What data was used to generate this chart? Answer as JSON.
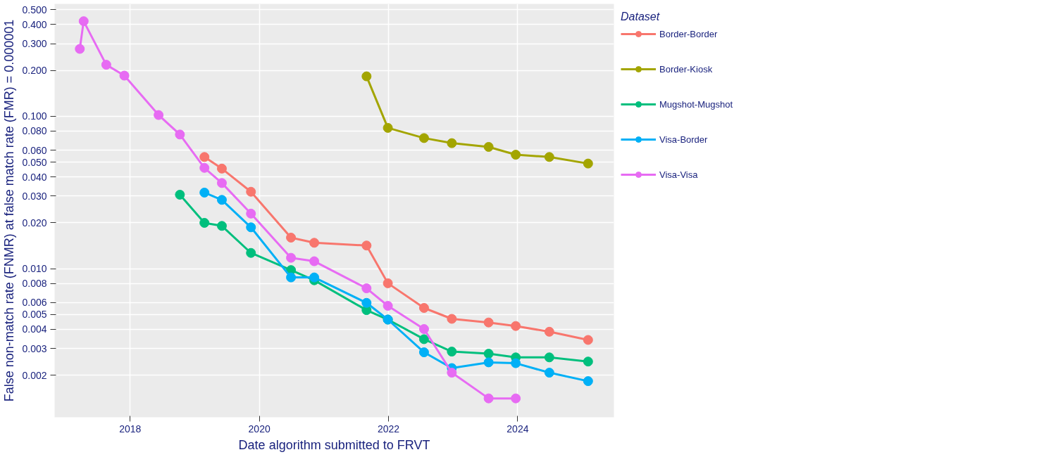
{
  "chart_data": {
    "type": "line",
    "xlabel": "Date algorithm submitted to FRVT",
    "ylabel": "False non-match rate (FNMR) at false match rate (FMR) = 0.000001",
    "legend_title": "Dataset",
    "legend": "right",
    "grid": true,
    "marker": "circle",
    "line_style": "solid",
    "log": "y",
    "xlim": [
      2016.83,
      2025.49
    ],
    "xticks": [
      2018,
      2020,
      2022,
      2024
    ],
    "ylim": [
      0.00106,
      0.547
    ],
    "yticks": [
      {
        "value": 0.002,
        "label": "0.002"
      },
      {
        "value": 0.003,
        "label": "0.003"
      },
      {
        "value": 0.004,
        "label": "0.004"
      },
      {
        "value": 0.005,
        "label": "0.005"
      },
      {
        "value": 0.006,
        "label": "0.006"
      },
      {
        "value": 0.008,
        "label": "0.008"
      },
      {
        "value": 0.01,
        "label": "0.010"
      },
      {
        "value": 0.02,
        "label": "0.020"
      },
      {
        "value": 0.03,
        "label": "0.030"
      },
      {
        "value": 0.04,
        "label": "0.040"
      },
      {
        "value": 0.05,
        "label": "0.050"
      },
      {
        "value": 0.06,
        "label": "0.060"
      },
      {
        "value": 0.08,
        "label": "0.080"
      },
      {
        "value": 0.1,
        "label": "0.100"
      },
      {
        "value": 0.2,
        "label": "0.200"
      },
      {
        "value": 0.3,
        "label": "0.300"
      },
      {
        "value": 0.4,
        "label": "0.400"
      },
      {
        "value": 0.5,
        "label": "0.500"
      }
    ],
    "series": [
      {
        "name": "Border-Border",
        "color": "#f8766d",
        "x": [
          2019.15,
          2019.42,
          2019.87,
          2020.49,
          2020.85,
          2021.66,
          2021.99,
          2022.55,
          2022.98,
          2023.55,
          2023.97,
          2024.49,
          2025.09
        ],
        "values": [
          0.0541,
          0.0454,
          0.032,
          0.016,
          0.0148,
          0.0142,
          0.00803,
          0.00553,
          0.00469,
          0.00444,
          0.00421,
          0.00386,
          0.00341
        ]
      },
      {
        "name": "Border-Kiosk",
        "color": "#a3a500",
        "x": [
          2021.66,
          2021.99,
          2022.55,
          2022.98,
          2023.55,
          2023.97,
          2024.49,
          2025.09
        ],
        "values": [
          0.183,
          0.084,
          0.072,
          0.0667,
          0.063,
          0.056,
          0.0541,
          0.049
        ]
      },
      {
        "name": "Mugshot-Mugshot",
        "color": "#00bf7d",
        "x": [
          2018.77,
          2019.15,
          2019.42,
          2019.87,
          2020.49,
          2020.85,
          2021.66,
          2021.99,
          2022.55,
          2022.98,
          2023.55,
          2023.97,
          2024.49,
          2025.09
        ],
        "values": [
          0.0306,
          0.02,
          0.0191,
          0.0127,
          0.0098,
          0.0084,
          0.00535,
          0.00464,
          0.00345,
          0.00286,
          0.00277,
          0.00262,
          0.00262,
          0.00246
        ]
      },
      {
        "name": "Visa-Border",
        "color": "#00b0f6",
        "x": [
          2019.15,
          2019.42,
          2019.87,
          2020.49,
          2020.85,
          2021.66,
          2021.99,
          2022.55,
          2022.98,
          2023.55,
          2023.97,
          2024.49,
          2025.09
        ],
        "values": [
          0.0316,
          0.0283,
          0.0187,
          0.00877,
          0.00877,
          0.00597,
          0.00464,
          0.00283,
          0.00223,
          0.00243,
          0.0024,
          0.00208,
          0.00183
        ]
      },
      {
        "name": "Visa-Visa",
        "color": "#e76bf3",
        "x": [
          2017.22,
          2017.28,
          2017.63,
          2017.91,
          2018.44,
          2018.77,
          2019.15,
          2019.42,
          2019.87,
          2020.49,
          2020.85,
          2021.66,
          2021.99,
          2022.55,
          2022.98,
          2023.55,
          2023.97
        ],
        "values": [
          0.277,
          0.421,
          0.218,
          0.185,
          0.102,
          0.076,
          0.0459,
          0.0365,
          0.023,
          0.0118,
          0.0112,
          0.00744,
          0.00571,
          0.00402,
          0.00208,
          0.00141,
          0.00141
        ]
      }
    ]
  }
}
